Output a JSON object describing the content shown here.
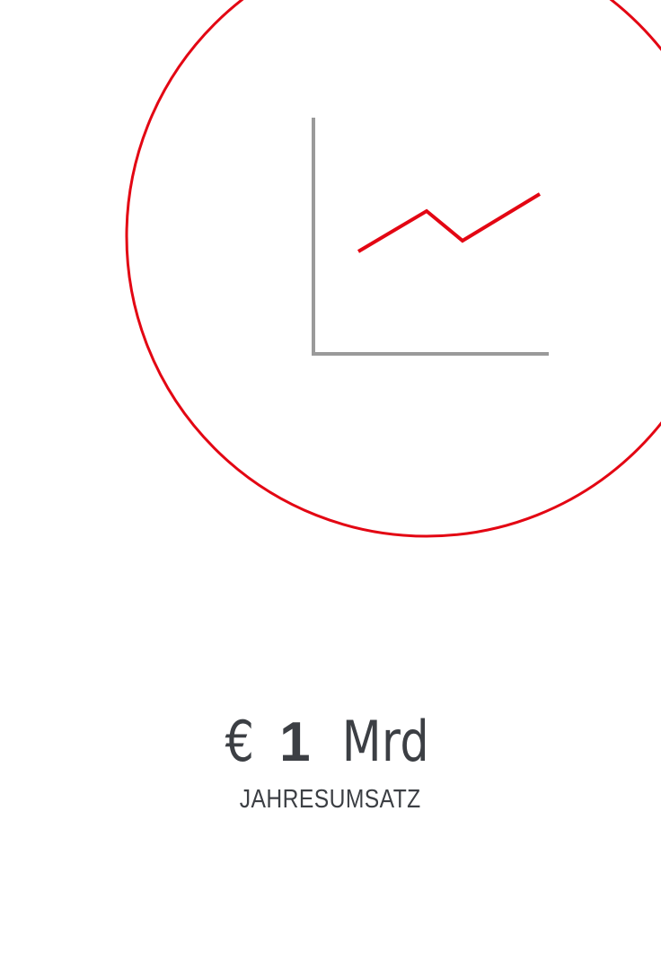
{
  "icon": {
    "name": "revenue-chart-icon",
    "ring_color": "#e30613",
    "axis_color": "#9a9a9a",
    "line_color": "#e30613"
  },
  "stat": {
    "currency": "€",
    "amount": "1",
    "unit": "Mrd",
    "label": "JAHRESUMSATZ",
    "text_color": "#3c3f44"
  }
}
